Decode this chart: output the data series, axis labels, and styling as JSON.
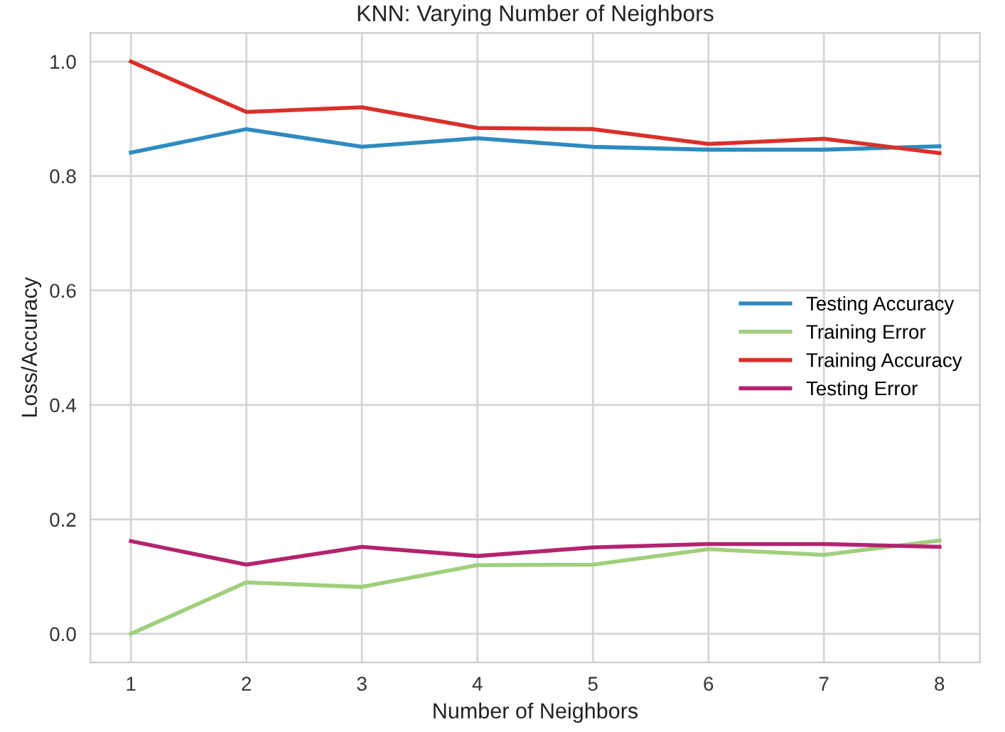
{
  "chart_data": {
    "type": "line",
    "title": "KNN: Varying Number of Neighbors",
    "xlabel": "Number of Neighbors",
    "ylabel": "Loss/Accuracy",
    "x": [
      1,
      2,
      3,
      4,
      5,
      6,
      7,
      8
    ],
    "series": [
      {
        "name": "Testing Accuracy",
        "color": "#2e8bc0",
        "values": [
          0.841,
          0.882,
          0.851,
          0.866,
          0.851,
          0.846,
          0.846,
          0.852
        ]
      },
      {
        "name": "Training Error",
        "color": "#a0cf7c",
        "values": [
          0.0,
          0.09,
          0.082,
          0.12,
          0.121,
          0.148,
          0.138,
          0.163
        ]
      },
      {
        "name": "Training Accuracy",
        "color": "#d9302a",
        "values": [
          1.0,
          0.912,
          0.92,
          0.884,
          0.882,
          0.856,
          0.865,
          0.84
        ]
      },
      {
        "name": "Testing Error",
        "color": "#b3246f",
        "values": [
          0.162,
          0.121,
          0.152,
          0.136,
          0.151,
          0.157,
          0.157,
          0.152
        ]
      }
    ],
    "xlim": [
      0.65,
      8.35
    ],
    "xticks": [
      1,
      2,
      3,
      4,
      5,
      6,
      7,
      8
    ],
    "ylim": [
      -0.05,
      1.05
    ],
    "yticks": [
      {
        "value": 0,
        "label": "0.0"
      },
      {
        "value": 0.2,
        "label": "0.2"
      },
      {
        "value": 0.4,
        "label": "0.4"
      },
      {
        "value": 0.6,
        "label": "0.6"
      },
      {
        "value": 0.8,
        "label": "0.8"
      },
      {
        "value": 1.0,
        "label": "1.0"
      }
    ],
    "grid": true,
    "legend": "right",
    "marker": "none",
    "line_style": "solid"
  }
}
